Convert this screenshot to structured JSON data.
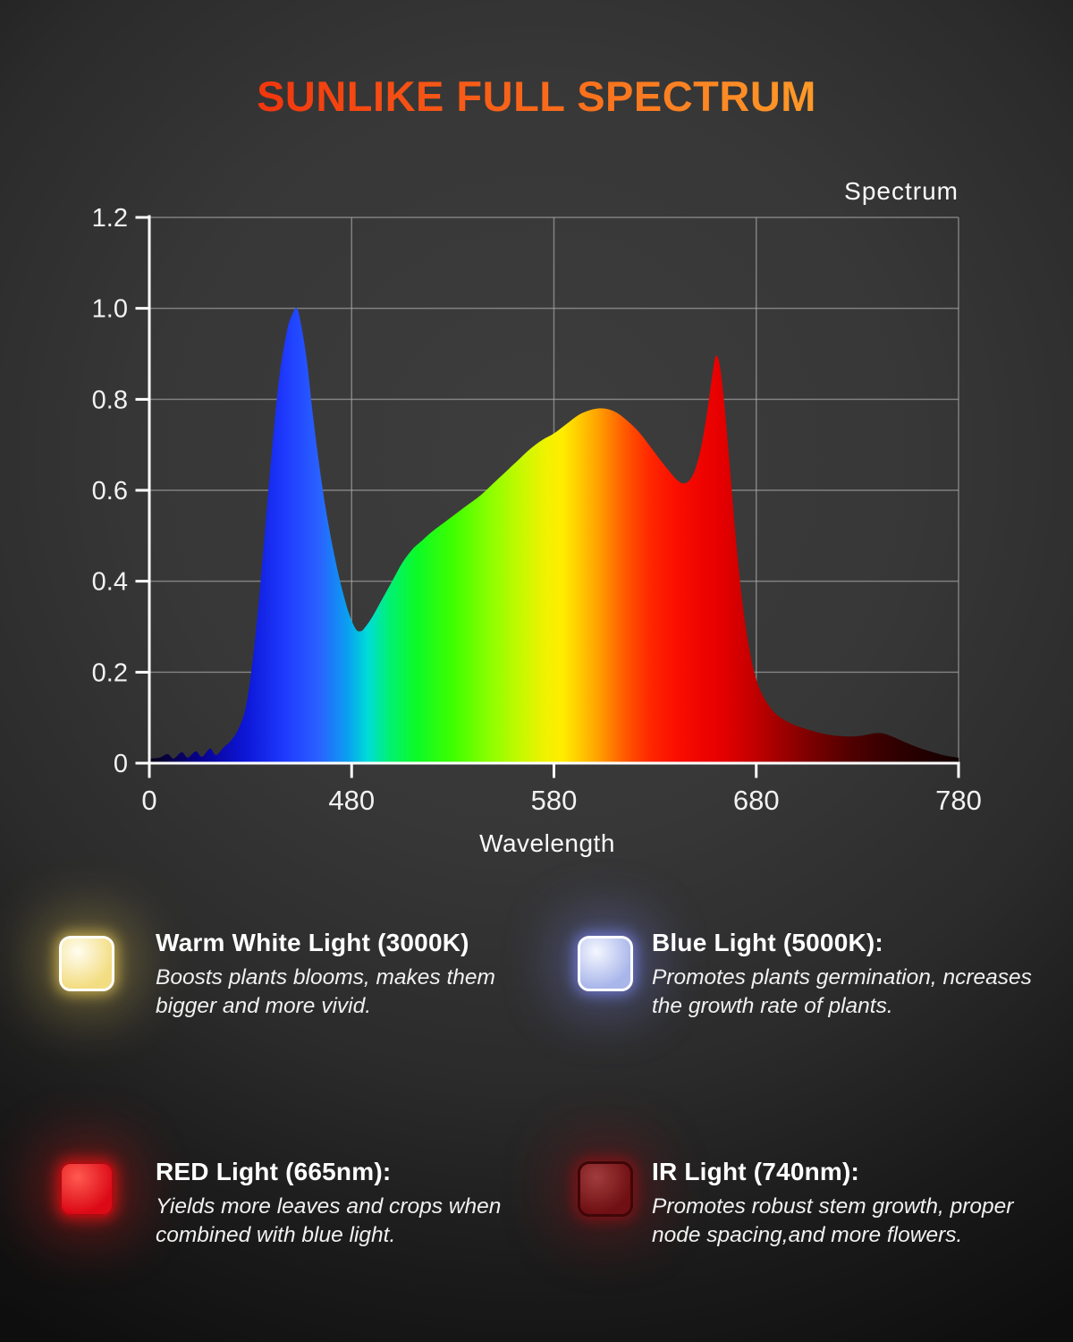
{
  "page": {
    "title": "SUNLIKE FULL SPECTRUM",
    "title_gradient": [
      "#f2360d",
      "#ff9a28"
    ],
    "background_color": "#333333"
  },
  "chart_data": {
    "type": "area",
    "title": "Spectrum",
    "xlabel": "Wavelength",
    "ylabel": "",
    "legend_position": "top-right",
    "grid": true,
    "x_axis": {
      "tick_labels": [
        "0",
        "480",
        "580",
        "680",
        "780"
      ],
      "wavelength_range_nm": [
        380,
        780
      ],
      "note": "ticks evenly spaced; origin labeled 0"
    },
    "y_axis": {
      "tick_labels": [
        "0",
        "0.2",
        "0.4",
        "0.6",
        "0.8",
        "1.0",
        "1.2"
      ],
      "range": [
        0,
        1.2
      ]
    },
    "series": [
      {
        "name": "Spectrum",
        "peaks": [
          {
            "wavelength_nm": 453,
            "value": 1.0,
            "label": "blue peak"
          },
          {
            "wavelength_nm": 600,
            "value": 0.78,
            "label": "broad warm hump"
          },
          {
            "wavelength_nm": 660,
            "value": 0.9,
            "label": "red peak"
          }
        ],
        "points": [
          [
            380,
            0.01
          ],
          [
            385,
            0.012
          ],
          [
            389,
            0.02
          ],
          [
            392,
            0.01
          ],
          [
            396,
            0.024
          ],
          [
            399,
            0.012
          ],
          [
            403,
            0.026
          ],
          [
            406,
            0.014
          ],
          [
            410,
            0.032
          ],
          [
            413,
            0.018
          ],
          [
            417,
            0.036
          ],
          [
            420,
            0.048
          ],
          [
            424,
            0.075
          ],
          [
            428,
            0.13
          ],
          [
            432,
            0.26
          ],
          [
            436,
            0.45
          ],
          [
            440,
            0.66
          ],
          [
            444,
            0.84
          ],
          [
            448,
            0.95
          ],
          [
            451,
            0.99
          ],
          [
            453,
            1.0
          ],
          [
            455,
            0.965
          ],
          [
            458,
            0.88
          ],
          [
            461,
            0.76
          ],
          [
            464,
            0.655
          ],
          [
            467,
            0.565
          ],
          [
            470,
            0.49
          ],
          [
            473,
            0.425
          ],
          [
            476,
            0.37
          ],
          [
            479,
            0.325
          ],
          [
            482,
            0.295
          ],
          [
            484,
            0.29
          ],
          [
            486,
            0.295
          ],
          [
            490,
            0.32
          ],
          [
            495,
            0.36
          ],
          [
            500,
            0.4
          ],
          [
            505,
            0.44
          ],
          [
            510,
            0.47
          ],
          [
            515,
            0.49
          ],
          [
            520,
            0.51
          ],
          [
            526,
            0.53
          ],
          [
            532,
            0.55
          ],
          [
            538,
            0.57
          ],
          [
            544,
            0.59
          ],
          [
            550,
            0.615
          ],
          [
            556,
            0.64
          ],
          [
            562,
            0.665
          ],
          [
            568,
            0.69
          ],
          [
            574,
            0.71
          ],
          [
            580,
            0.725
          ],
          [
            586,
            0.745
          ],
          [
            592,
            0.765
          ],
          [
            597,
            0.775
          ],
          [
            602,
            0.78
          ],
          [
            607,
            0.778
          ],
          [
            612,
            0.768
          ],
          [
            617,
            0.75
          ],
          [
            622,
            0.728
          ],
          [
            627,
            0.7
          ],
          [
            632,
            0.67
          ],
          [
            637,
            0.642
          ],
          [
            641,
            0.622
          ],
          [
            644,
            0.615
          ],
          [
            647,
            0.622
          ],
          [
            650,
            0.648
          ],
          [
            653,
            0.7
          ],
          [
            656,
            0.78
          ],
          [
            658,
            0.845
          ],
          [
            660,
            0.895
          ],
          [
            662,
            0.875
          ],
          [
            664,
            0.8
          ],
          [
            666,
            0.7
          ],
          [
            668,
            0.595
          ],
          [
            670,
            0.49
          ],
          [
            673,
            0.36
          ],
          [
            676,
            0.265
          ],
          [
            679,
            0.2
          ],
          [
            682,
            0.16
          ],
          [
            686,
            0.128
          ],
          [
            690,
            0.107
          ],
          [
            695,
            0.092
          ],
          [
            700,
            0.082
          ],
          [
            706,
            0.073
          ],
          [
            712,
            0.066
          ],
          [
            718,
            0.061
          ],
          [
            724,
            0.059
          ],
          [
            729,
            0.059
          ],
          [
            734,
            0.062
          ],
          [
            739,
            0.066
          ],
          [
            743,
            0.065
          ],
          [
            748,
            0.057
          ],
          [
            753,
            0.047
          ],
          [
            758,
            0.038
          ],
          [
            763,
            0.03
          ],
          [
            768,
            0.023
          ],
          [
            773,
            0.017
          ],
          [
            780,
            0.012
          ]
        ]
      }
    ],
    "spectrum_gradient_stops": [
      {
        "offset": 0,
        "color": "#050012"
      },
      {
        "offset": 6,
        "color": "#07008c"
      },
      {
        "offset": 12,
        "color": "#0d17d8"
      },
      {
        "offset": 17,
        "color": "#1f3cff"
      },
      {
        "offset": 21,
        "color": "#2a62ff"
      },
      {
        "offset": 24.5,
        "color": "#0a9ff0"
      },
      {
        "offset": 27,
        "color": "#00dcd8"
      },
      {
        "offset": 29.5,
        "color": "#00f078"
      },
      {
        "offset": 33,
        "color": "#0cfa28"
      },
      {
        "offset": 37.5,
        "color": "#3eff00"
      },
      {
        "offset": 42,
        "color": "#8aff00"
      },
      {
        "offset": 46,
        "color": "#c8f800"
      },
      {
        "offset": 49,
        "color": "#f0f200"
      },
      {
        "offset": 51,
        "color": "#ffee00"
      },
      {
        "offset": 53.5,
        "color": "#ffc400"
      },
      {
        "offset": 55.5,
        "color": "#ffa000"
      },
      {
        "offset": 57.5,
        "color": "#ff7400"
      },
      {
        "offset": 59.5,
        "color": "#ff4c00"
      },
      {
        "offset": 62,
        "color": "#ff2600"
      },
      {
        "offset": 65,
        "color": "#fa0f00"
      },
      {
        "offset": 68.5,
        "color": "#ee0300"
      },
      {
        "offset": 71,
        "color": "#e30000"
      },
      {
        "offset": 74.5,
        "color": "#c40000"
      },
      {
        "offset": 78,
        "color": "#a00000"
      },
      {
        "offset": 82,
        "color": "#780000"
      },
      {
        "offset": 87,
        "color": "#4e0000"
      },
      {
        "offset": 93,
        "color": "#2c0000"
      },
      {
        "offset": 100,
        "color": "#120000"
      }
    ]
  },
  "legend": {
    "items": [
      {
        "title": "Warm White Light (3000K)",
        "desc1": "Boosts plants blooms, makes them",
        "desc2": "bigger and more vivid.",
        "icon": "warm-white-led",
        "fill_center": "#fffdf0",
        "fill_edge": "#f3dd82",
        "border": "#ffffff",
        "glow": "#e2c455"
      },
      {
        "title": "Blue Light (5000K):",
        "desc1": "Promotes plants germination, ncreases",
        "desc2": "the growth rate of plants.",
        "icon": "blue-led",
        "fill_center": "#f4f7ff",
        "fill_edge": "#a9b6ea",
        "border": "#ffffff",
        "glow": "#7a86ee"
      },
      {
        "title": "RED Light (665nm):",
        "desc1": "Yields more leaves and crops when",
        "desc2": "combined with blue light.",
        "icon": "red-led",
        "fill_center": "#ff5a50",
        "fill_edge": "#dc0a16",
        "border": "#a80d12",
        "glow": "#e61414"
      },
      {
        "title": "IR Light (740nm):",
        "desc1": "Promotes robust stem growth, proper",
        "desc2": "node spacing,and more flowers.",
        "icon": "ir-led",
        "fill_center": "#a03c3c",
        "fill_edge": "#701014",
        "border": "#3f0608",
        "glow": "#961014"
      }
    ]
  }
}
